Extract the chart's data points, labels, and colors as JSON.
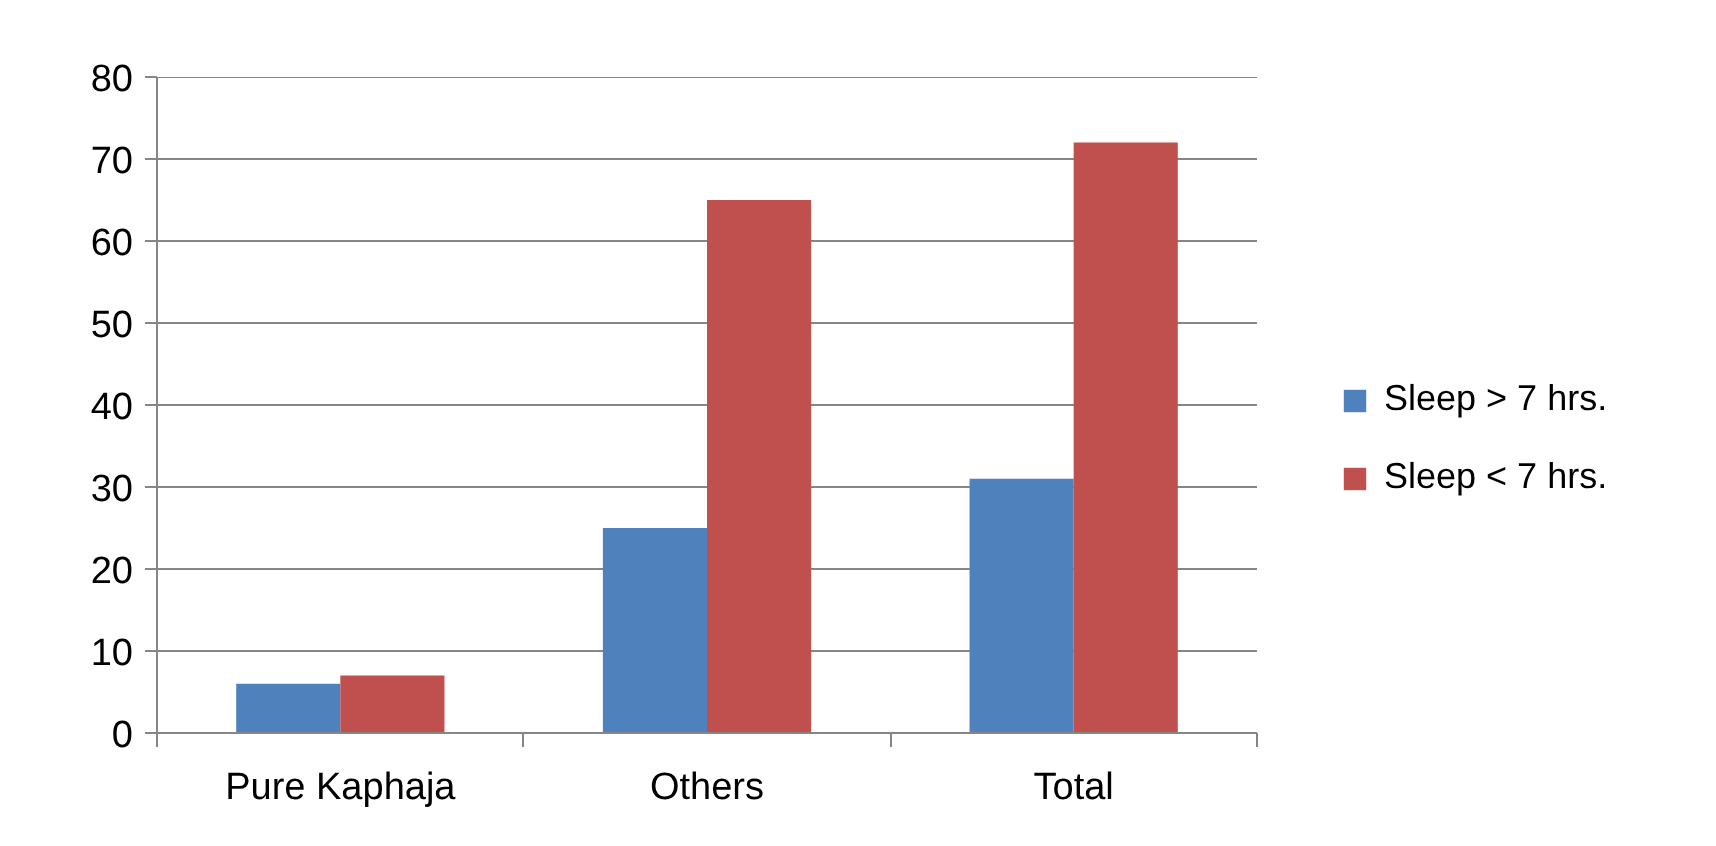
{
  "chart_data": {
    "type": "bar",
    "categories": [
      "Pure Kaphaja",
      "Others",
      "Total"
    ],
    "series": [
      {
        "name": "Sleep > 7 hrs.",
        "color": "#4f81bd",
        "values": [
          6,
          25,
          31
        ]
      },
      {
        "name": "Sleep < 7 hrs.",
        "color": "#c0504d",
        "values": [
          7,
          65,
          72
        ]
      }
    ],
    "ylim": [
      0,
      80
    ],
    "yticks": [
      0,
      10,
      20,
      30,
      40,
      50,
      60,
      70,
      80
    ],
    "grid": "y",
    "legend": "right"
  }
}
